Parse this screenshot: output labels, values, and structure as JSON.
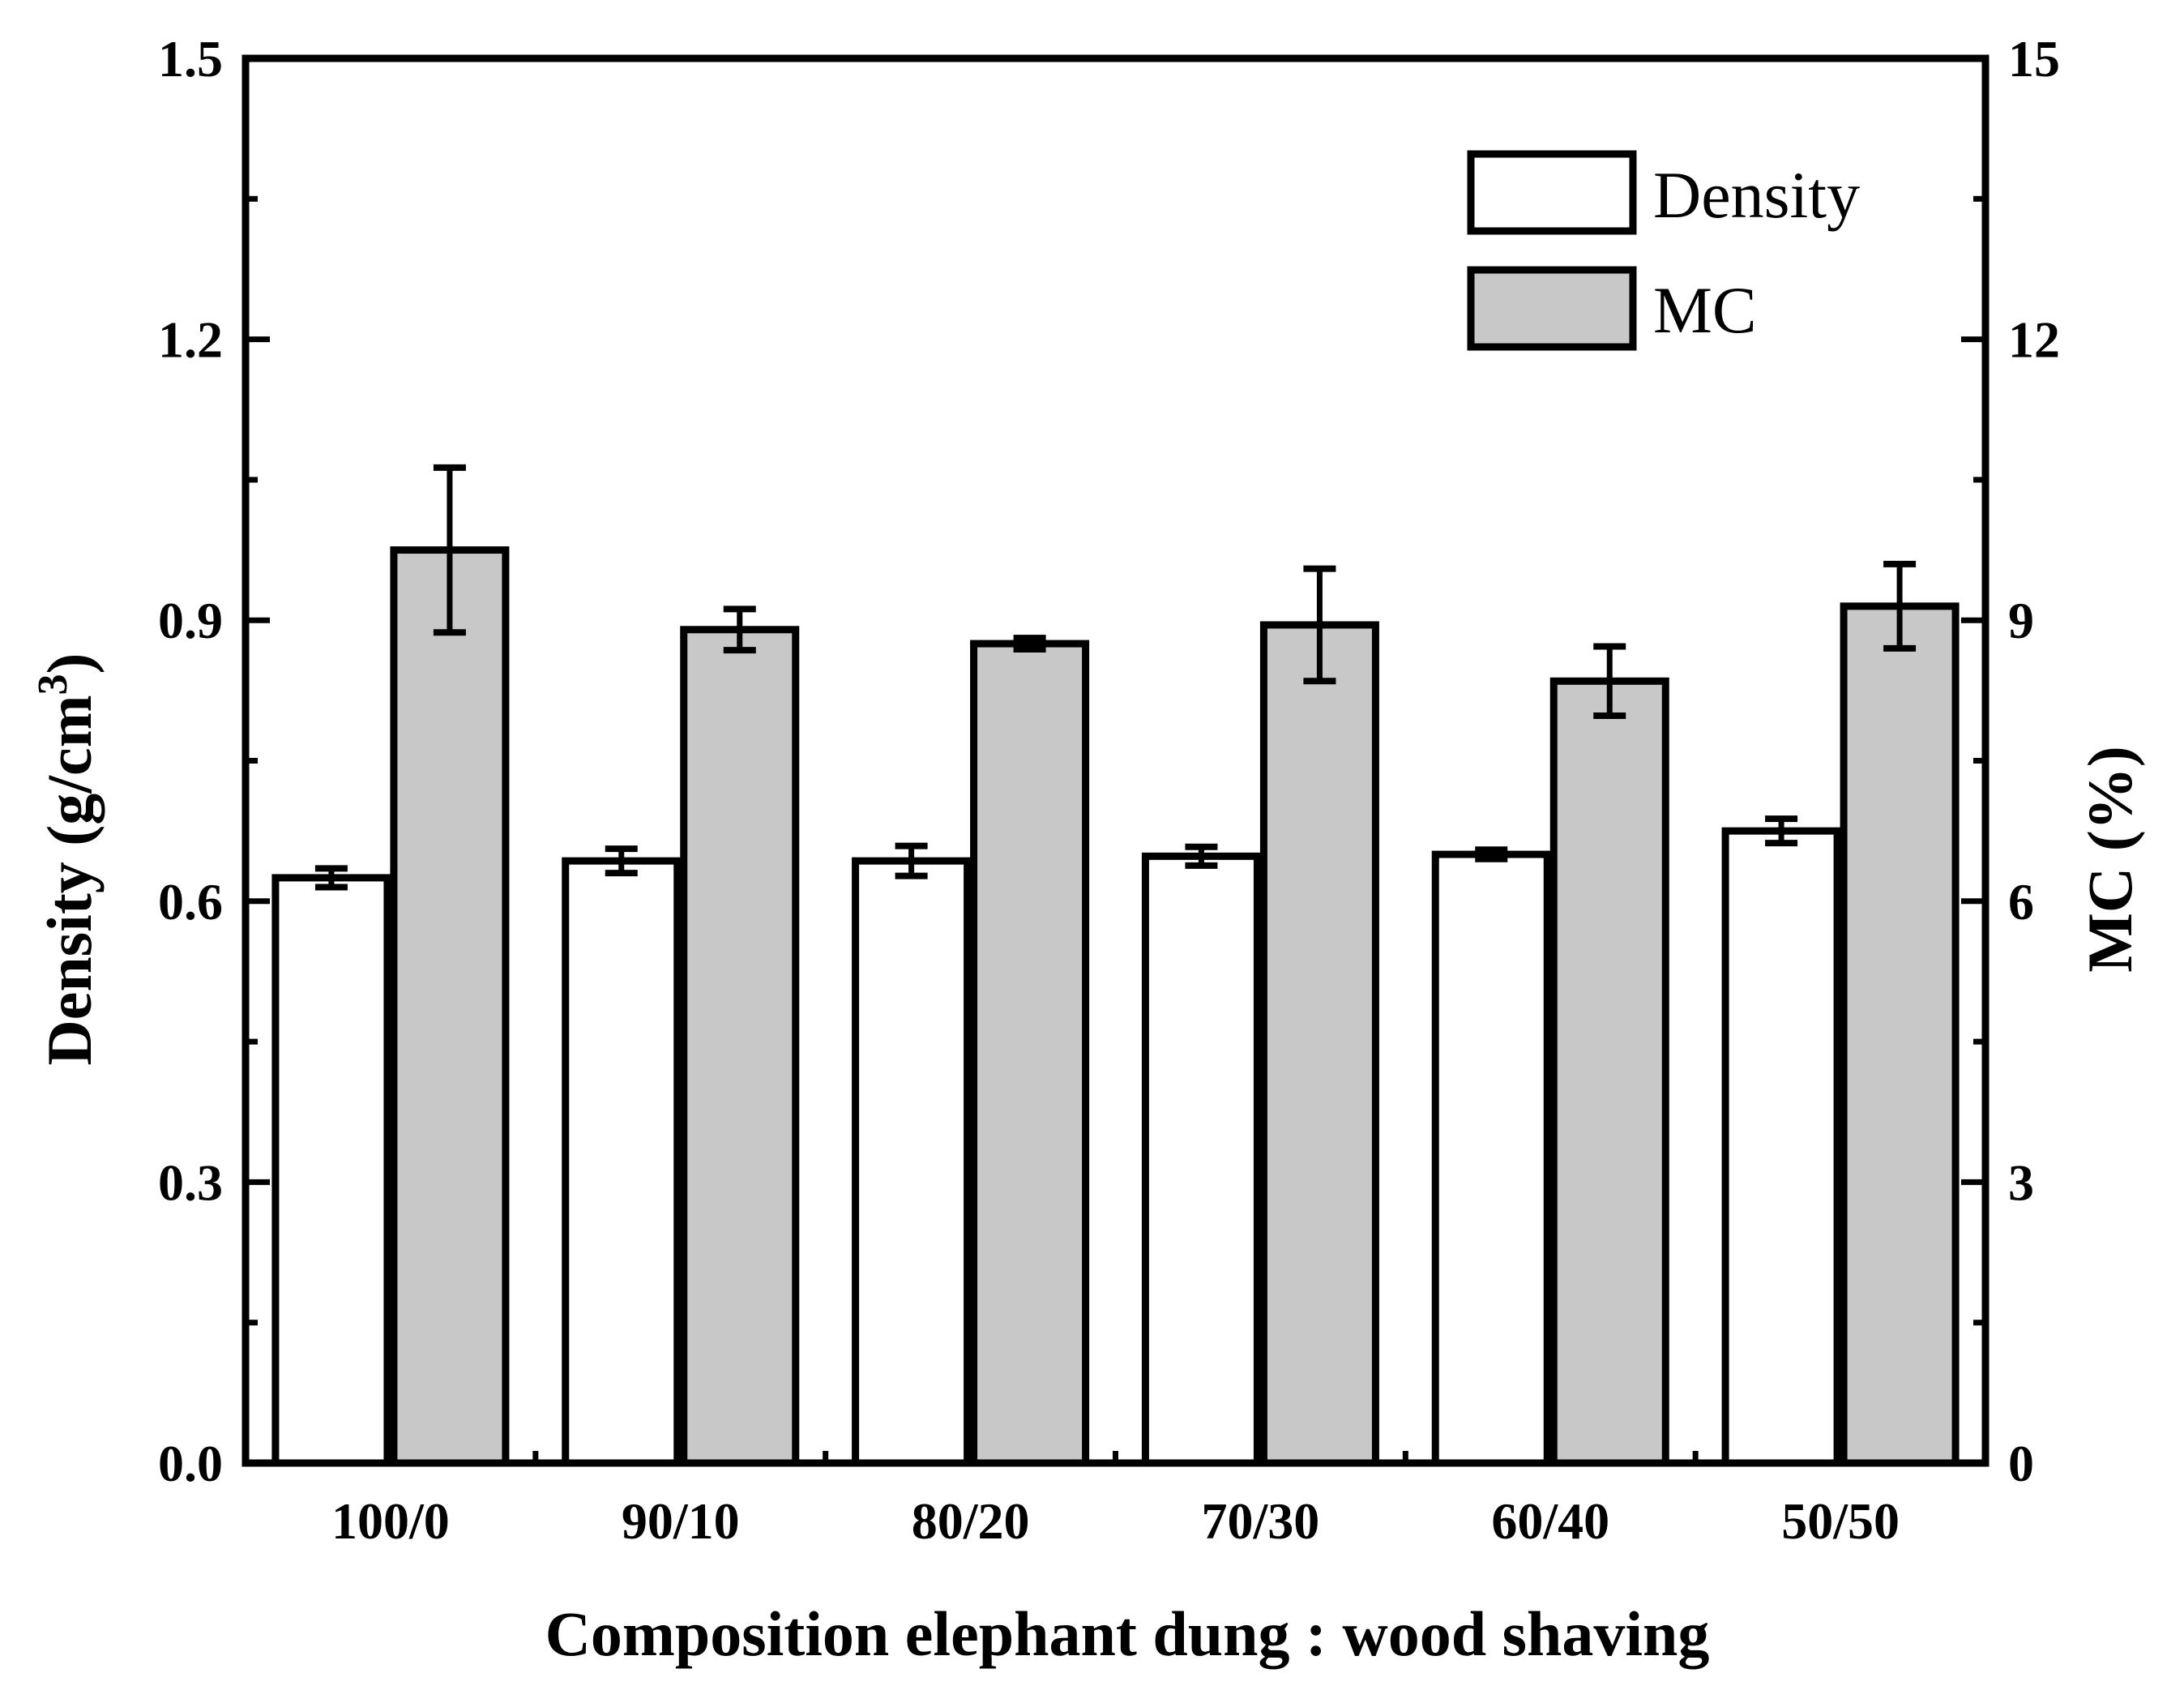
{
  "chart_data": {
    "type": "bar",
    "categories": [
      "100/0",
      "90/10",
      "80/20",
      "70/30",
      "60/40",
      "50/50"
    ],
    "series": [
      {
        "name": "Density",
        "axis": "left",
        "color": "#ffffff",
        "values": [
          0.625,
          0.643,
          0.643,
          0.648,
          0.65,
          0.675
        ],
        "errors": [
          0.01,
          0.013,
          0.016,
          0.01,
          0.005,
          0.013
        ]
      },
      {
        "name": "MC",
        "axis": "right",
        "color": "#c8c8c8",
        "values": [
          9.75,
          8.9,
          8.75,
          8.95,
          8.35,
          9.15
        ],
        "errors": [
          0.88,
          0.22,
          0.06,
          0.6,
          0.37,
          0.45
        ]
      }
    ],
    "xlabel": "Composition elephant dung : wood shaving",
    "ylabel": "Density (g/cm",
    "ylabel_sup": "3",
    "ylabel_close": ")",
    "y2label": "MC (%)",
    "ylim": [
      0,
      1.5
    ],
    "y2lim": [
      0,
      15
    ],
    "yticks": [
      "0.0",
      "0.3",
      "0.6",
      "0.9",
      "1.2",
      "1.5"
    ],
    "y2ticks": [
      "0",
      "3",
      "6",
      "9",
      "12",
      "15"
    ],
    "legend_position": "top-right",
    "grid": false
  }
}
